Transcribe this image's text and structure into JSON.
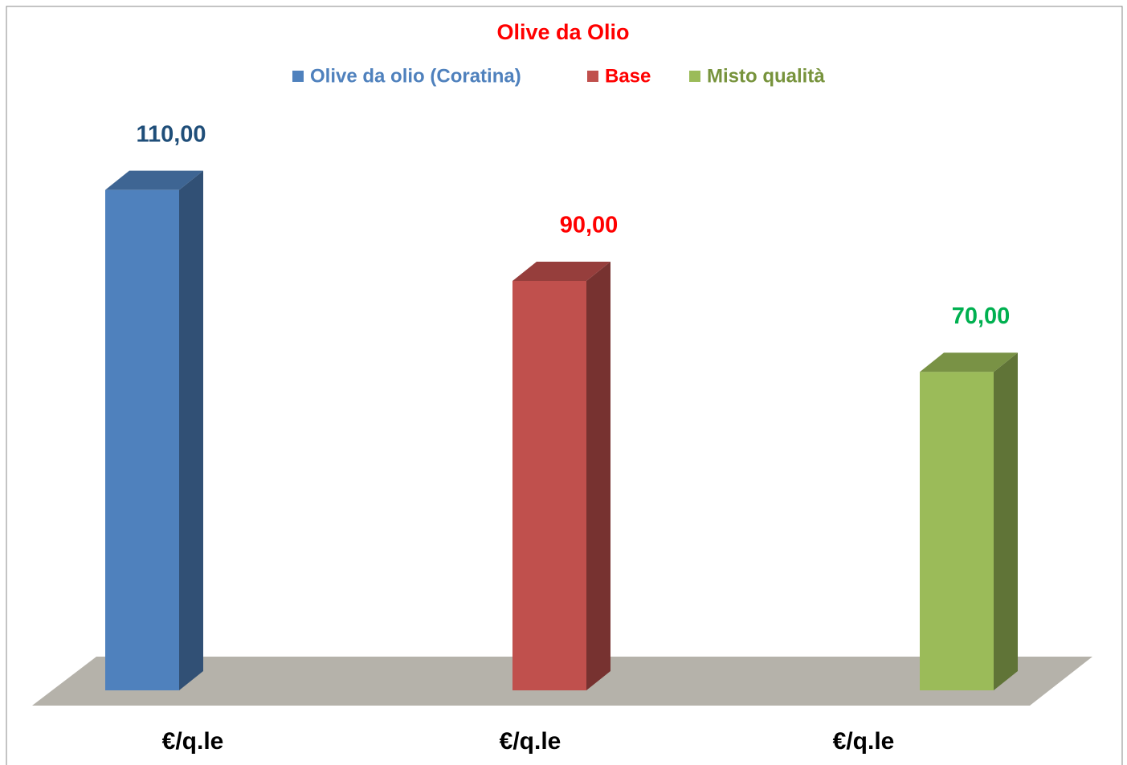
{
  "chart_data": {
    "type": "bar3d",
    "title": "Olive da Olio",
    "legend": [
      "Olive da olio  (Coratina)",
      "Base",
      "Misto qualità"
    ],
    "legend_colors": [
      "#4f81bd",
      "#ff0000",
      "#77933c"
    ],
    "categories": [
      "€/q.le",
      "€/q.le",
      "€/q.le"
    ],
    "values": [
      110,
      90,
      70
    ],
    "value_labels": [
      "110,00",
      "90,00",
      "70,00"
    ],
    "colors": [
      "#4f81bd",
      "#c0504d",
      "#9bbb59"
    ],
    "label_colors": [
      "#1f4e79",
      "#ff0000",
      "#00b050"
    ],
    "ylim": [
      0,
      120
    ]
  }
}
